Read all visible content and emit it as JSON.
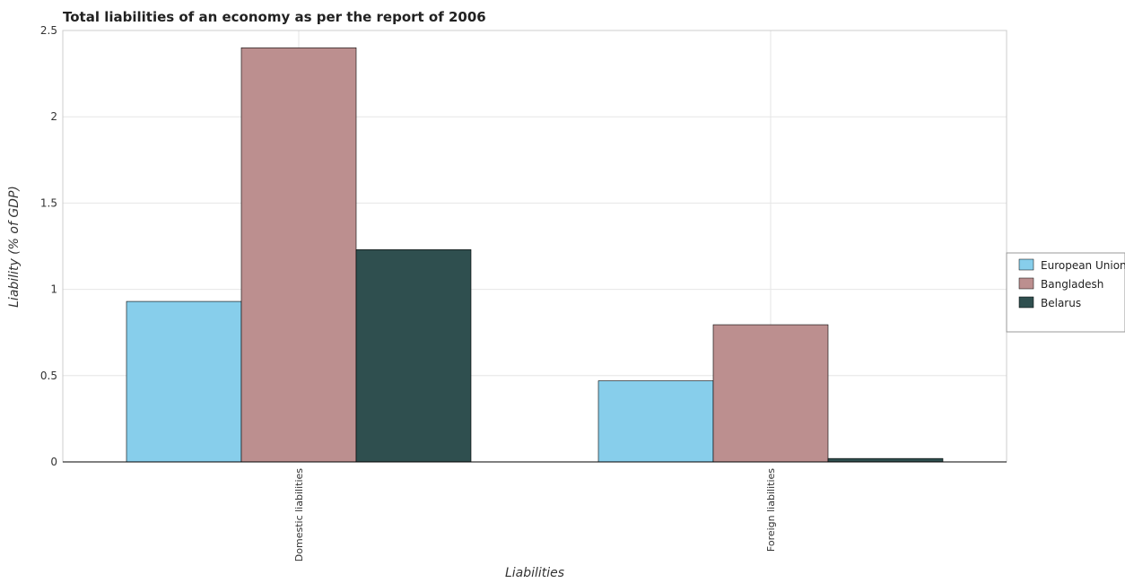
{
  "chart_data": {
    "type": "bar",
    "title": "Total liabilities of an economy as per the report of 2006",
    "xlabel": "Liabilities",
    "ylabel": "Liability (% of GDP)",
    "categories": [
      "Domestic liabilities",
      "Foreign liabilities"
    ],
    "series": [
      {
        "name": "European Union",
        "color": "#87ceeb",
        "values": [
          0.93,
          0.47
        ]
      },
      {
        "name": "Bangladesh",
        "color": "#bc8f8f",
        "values": [
          2.4,
          0.795
        ]
      },
      {
        "name": "Belarus",
        "color": "#2f4f4f",
        "values": [
          1.23,
          0.02
        ]
      }
    ],
    "ylim": [
      0,
      2.5
    ],
    "yticks": [
      "0",
      "0.5",
      "1",
      "1.5",
      "2",
      "2.5"
    ],
    "grid": true,
    "legend": "right"
  }
}
